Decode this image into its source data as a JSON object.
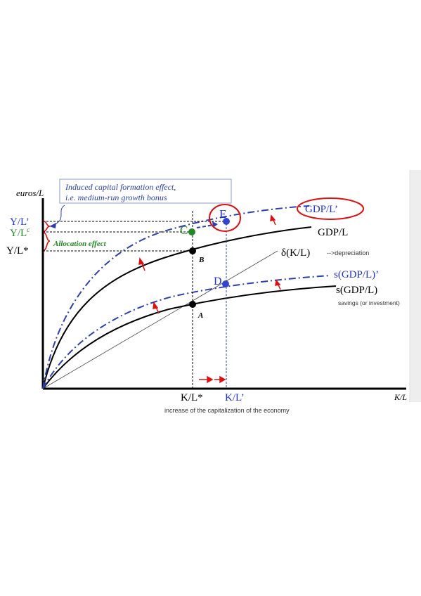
{
  "colors": {
    "axis": "#000000",
    "curve": "#000000",
    "shifted_curve": "#3333aa",
    "dashdot_blue": "#2b3fb0",
    "label_blue": "#2233cc",
    "accent_red": "#dd1111",
    "point_green": "#228822",
    "point_blue": "#3344cc",
    "callout_text": "#2b3fb0",
    "side_panel": "#eeeeee"
  },
  "diagram": {
    "y_axis_label": "euros/L",
    "x_axis_label": "K/L",
    "callout_line1": "Induced capital formation effect,",
    "callout_line2": "i.e. medium-run growth bonus",
    "y_labels": {
      "y_l_prime": "Y/L’",
      "y_l_c": "Y/L",
      "y_l_c_sup": "c",
      "y_l_star": "Y/L*"
    },
    "allocation_effect": "Allocation effect",
    "curve_labels": {
      "gdp_l_prime": "GDP/L’",
      "gdp_l": "GDP/L",
      "delta": "δ(K/L)",
      "depreciation": "-->depreciation",
      "s_gdp_prime": "s(GDP/L)’",
      "s_gdp": "s(GDP/L)",
      "savings": "savings (or investment)"
    },
    "points": {
      "a": "A",
      "b": "B",
      "c": "C",
      "d": "D",
      "e": "E"
    },
    "x_ticks": {
      "k_l_star": "K/L*",
      "k_l_prime": "K/L’"
    },
    "caption": "increase of the capitalization of the economy"
  }
}
